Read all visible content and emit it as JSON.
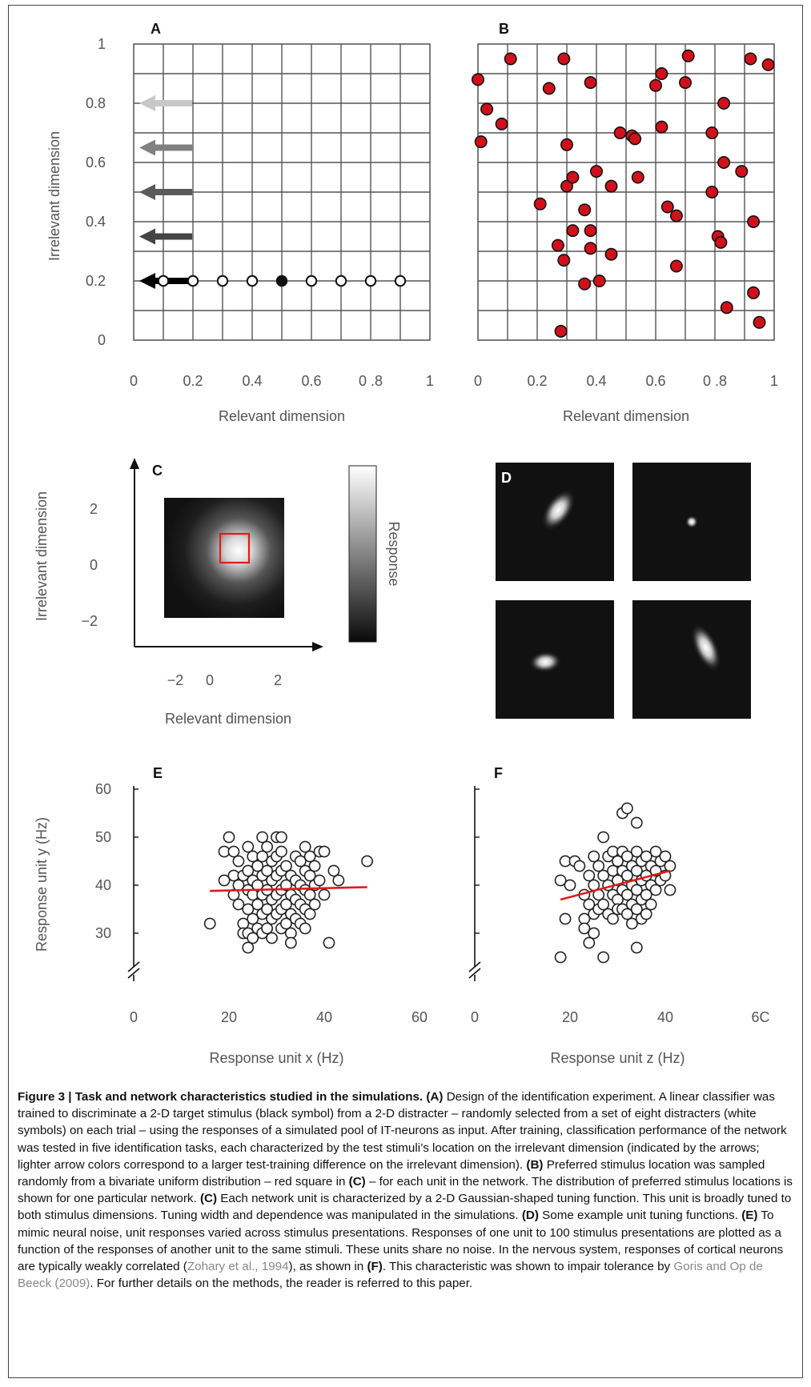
{
  "panels": {
    "A": {
      "label": "A",
      "xlabel": "Relevant dimension",
      "ylabel": "Irrelevant dimension",
      "xticks": [
        "0",
        "0.2",
        "0.4",
        "0.6",
        "0 .8",
        "1"
      ],
      "yticks": [
        "1",
        "0.8",
        "0.6",
        "0.4",
        "0.2",
        "0"
      ]
    },
    "B": {
      "label": "B",
      "xlabel": "Relevant dimension",
      "xticks": [
        "0",
        "0.2",
        "0.4",
        "0.6",
        "0 .8",
        "1"
      ]
    },
    "C": {
      "label": "C",
      "xlabel": "Relevant dimension",
      "ylabel": "Irrelevant dimension",
      "colorbar_label": "Response",
      "xticks": [
        "−2",
        "0",
        "2"
      ],
      "yticks": [
        "2",
        "0",
        "−2"
      ]
    },
    "D": {
      "label": "D"
    },
    "E": {
      "label": "E",
      "xlabel": "Response unit x (Hz)",
      "ylabel": "Response unit y (Hz)",
      "xticks": [
        "0",
        "20",
        "40",
        "60"
      ],
      "yticks": [
        "60",
        "50",
        "40",
        "30"
      ]
    },
    "F": {
      "label": "F",
      "xlabel": "Response unit z (Hz)",
      "xticks": [
        "0",
        "20",
        "40",
        "6C"
      ]
    }
  },
  "chart_data": [
    {
      "panel": "A",
      "type": "scatter",
      "xlim": [
        0,
        1
      ],
      "ylim": [
        0,
        1
      ],
      "grid": true,
      "distracters": [
        [
          0.1,
          0.2
        ],
        [
          0.2,
          0.2
        ],
        [
          0.3,
          0.2
        ],
        [
          0.4,
          0.2
        ],
        [
          0.6,
          0.2
        ],
        [
          0.7,
          0.2
        ],
        [
          0.8,
          0.2
        ],
        [
          0.9,
          0.2
        ]
      ],
      "target": [
        0.5,
        0.2
      ],
      "arrows": [
        {
          "y": 0.2,
          "color": "#000000"
        },
        {
          "y": 0.35,
          "color": "#444444"
        },
        {
          "y": 0.5,
          "color": "#5a5a5a"
        },
        {
          "y": 0.65,
          "color": "#808080"
        },
        {
          "y": 0.8,
          "color": "#c8c8c8"
        }
      ]
    },
    {
      "panel": "B",
      "type": "scatter",
      "xlim": [
        0,
        1
      ],
      "ylim": [
        0,
        1
      ],
      "grid": true,
      "color": "#d0111b",
      "points": [
        [
          0.0,
          0.88
        ],
        [
          0.03,
          0.78
        ],
        [
          0.01,
          0.67
        ],
        [
          0.08,
          0.73
        ],
        [
          0.11,
          0.95
        ],
        [
          0.24,
          0.85
        ],
        [
          0.29,
          0.95
        ],
        [
          0.38,
          0.87
        ],
        [
          0.6,
          0.86
        ],
        [
          0.62,
          0.9
        ],
        [
          0.71,
          0.96
        ],
        [
          0.7,
          0.87
        ],
        [
          0.83,
          0.8
        ],
        [
          0.92,
          0.95
        ],
        [
          0.98,
          0.93
        ],
        [
          0.3,
          0.66
        ],
        [
          0.48,
          0.7
        ],
        [
          0.52,
          0.69
        ],
        [
          0.53,
          0.68
        ],
        [
          0.62,
          0.72
        ],
        [
          0.79,
          0.7
        ],
        [
          0.21,
          0.46
        ],
        [
          0.3,
          0.52
        ],
        [
          0.32,
          0.55
        ],
        [
          0.4,
          0.57
        ],
        [
          0.45,
          0.52
        ],
        [
          0.54,
          0.55
        ],
        [
          0.64,
          0.45
        ],
        [
          0.67,
          0.42
        ],
        [
          0.79,
          0.5
        ],
        [
          0.83,
          0.6
        ],
        [
          0.89,
          0.57
        ],
        [
          0.27,
          0.32
        ],
        [
          0.29,
          0.27
        ],
        [
          0.32,
          0.37
        ],
        [
          0.36,
          0.44
        ],
        [
          0.38,
          0.37
        ],
        [
          0.38,
          0.31
        ],
        [
          0.45,
          0.29
        ],
        [
          0.81,
          0.35
        ],
        [
          0.82,
          0.33
        ],
        [
          0.93,
          0.4
        ],
        [
          0.36,
          0.19
        ],
        [
          0.41,
          0.2
        ],
        [
          0.67,
          0.25
        ],
        [
          0.84,
          0.11
        ],
        [
          0.93,
          0.16
        ],
        [
          0.95,
          0.06
        ],
        [
          0.28,
          0.03
        ]
      ]
    },
    {
      "panel": "C",
      "type": "heatmap",
      "xlim": [
        -3,
        3
      ],
      "ylim": [
        -3,
        3
      ],
      "peak": [
        1,
        0.5
      ],
      "sigma": [
        1.0,
        1.0
      ],
      "preferred_region": {
        "x": [
          0.5,
          1.5
        ],
        "y": [
          0,
          1
        ]
      }
    },
    {
      "panel": "D",
      "type": "heatmap",
      "tuning_functions": [
        {
          "position": "top-left",
          "center": [
            0.53,
            0.4
          ],
          "sigma_major": 0.2,
          "sigma_minor": 0.11,
          "angle_deg": -55
        },
        {
          "position": "top-right",
          "center": [
            0.5,
            0.5
          ],
          "sigma_major": 0.055,
          "sigma_minor": 0.055,
          "angle_deg": 0
        },
        {
          "position": "bottom-left",
          "center": [
            0.42,
            0.52
          ],
          "sigma_major": 0.14,
          "sigma_minor": 0.09,
          "angle_deg": -5
        },
        {
          "position": "bottom-right",
          "center": [
            0.62,
            0.4
          ],
          "sigma_major": 0.22,
          "sigma_minor": 0.1,
          "angle_deg": 65
        }
      ]
    },
    {
      "panel": "E",
      "type": "scatter",
      "xlim": [
        0,
        60
      ],
      "ylim": [
        20,
        60
      ],
      "regression": [
        [
          16,
          38.8
        ],
        [
          49,
          39.6
        ]
      ],
      "points": [
        [
          16,
          32
        ],
        [
          19,
          41
        ],
        [
          19,
          47
        ],
        [
          20,
          50
        ],
        [
          21,
          47
        ],
        [
          21,
          42
        ],
        [
          21,
          38
        ],
        [
          22,
          45
        ],
        [
          22,
          40
        ],
        [
          22,
          36
        ],
        [
          23,
          42
        ],
        [
          23,
          32
        ],
        [
          23,
          30
        ],
        [
          24,
          48
        ],
        [
          24,
          43
        ],
        [
          24,
          39
        ],
        [
          24,
          35
        ],
        [
          24,
          30
        ],
        [
          24,
          27
        ],
        [
          25,
          46
        ],
        [
          25,
          41
        ],
        [
          25,
          38
        ],
        [
          25,
          33
        ],
        [
          25,
          29
        ],
        [
          26,
          44
        ],
        [
          26,
          40
        ],
        [
          26,
          36
        ],
        [
          26,
          31
        ],
        [
          27,
          50
        ],
        [
          27,
          46
        ],
        [
          27,
          42
        ],
        [
          27,
          38
        ],
        [
          27,
          34
        ],
        [
          27,
          30
        ],
        [
          28,
          48
        ],
        [
          28,
          43
        ],
        [
          28,
          39
        ],
        [
          28,
          35
        ],
        [
          28,
          31
        ],
        [
          29,
          45
        ],
        [
          29,
          41
        ],
        [
          29,
          37
        ],
        [
          29,
          33
        ],
        [
          29,
          29
        ],
        [
          30,
          50
        ],
        [
          30,
          46
        ],
        [
          30,
          42
        ],
        [
          30,
          38
        ],
        [
          30,
          34
        ],
        [
          31,
          50
        ],
        [
          31,
          47
        ],
        [
          31,
          43
        ],
        [
          31,
          39
        ],
        [
          31,
          35
        ],
        [
          31,
          31
        ],
        [
          32,
          44
        ],
        [
          32,
          40
        ],
        [
          32,
          36
        ],
        [
          32,
          32
        ],
        [
          33,
          42
        ],
        [
          33,
          38
        ],
        [
          33,
          34
        ],
        [
          33,
          30
        ],
        [
          33,
          28
        ],
        [
          34,
          46
        ],
        [
          34,
          41
        ],
        [
          34,
          37
        ],
        [
          34,
          33
        ],
        [
          35,
          45
        ],
        [
          35,
          40
        ],
        [
          35,
          36
        ],
        [
          35,
          32
        ],
        [
          36,
          48
        ],
        [
          36,
          43
        ],
        [
          36,
          39
        ],
        [
          36,
          35
        ],
        [
          36,
          31
        ],
        [
          37,
          46
        ],
        [
          37,
          42
        ],
        [
          37,
          38
        ],
        [
          37,
          34
        ],
        [
          38,
          44
        ],
        [
          38,
          40
        ],
        [
          38,
          36
        ],
        [
          39,
          47
        ],
        [
          39,
          41
        ],
        [
          40,
          47
        ],
        [
          40,
          38
        ],
        [
          41,
          28
        ],
        [
          42,
          43
        ],
        [
          43,
          41
        ],
        [
          49,
          45
        ]
      ]
    },
    {
      "panel": "F",
      "type": "scatter",
      "xlim": [
        0,
        60
      ],
      "ylim": [
        20,
        60
      ],
      "regression": [
        [
          18,
          37
        ],
        [
          41,
          43
        ]
      ],
      "points": [
        [
          18,
          25
        ],
        [
          18,
          41
        ],
        [
          19,
          45
        ],
        [
          19,
          33
        ],
        [
          20,
          40
        ],
        [
          21,
          45
        ],
        [
          22,
          44
        ],
        [
          23,
          38
        ],
        [
          23,
          33
        ],
        [
          23,
          31
        ],
        [
          24,
          42
        ],
        [
          24,
          36
        ],
        [
          24,
          28
        ],
        [
          25,
          46
        ],
        [
          25,
          40
        ],
        [
          25,
          34
        ],
        [
          25,
          30
        ],
        [
          26,
          44
        ],
        [
          26,
          38
        ],
        [
          26,
          35
        ],
        [
          27,
          50
        ],
        [
          27,
          42
        ],
        [
          27,
          36
        ],
        [
          27,
          25
        ],
        [
          28,
          46
        ],
        [
          28,
          40
        ],
        [
          28,
          34
        ],
        [
          29,
          47
        ],
        [
          29,
          43
        ],
        [
          29,
          38
        ],
        [
          29,
          33
        ],
        [
          30,
          45
        ],
        [
          30,
          41
        ],
        [
          30,
          37
        ],
        [
          30,
          35
        ],
        [
          31,
          55
        ],
        [
          31,
          47
        ],
        [
          31,
          43
        ],
        [
          31,
          39
        ],
        [
          31,
          35
        ],
        [
          32,
          56
        ],
        [
          32,
          46
        ],
        [
          32,
          42
        ],
        [
          32,
          38
        ],
        [
          32,
          34
        ],
        [
          33,
          44
        ],
        [
          33,
          40
        ],
        [
          33,
          36
        ],
        [
          33,
          32
        ],
        [
          34,
          53
        ],
        [
          34,
          47
        ],
        [
          34,
          43
        ],
        [
          34,
          39
        ],
        [
          34,
          35
        ],
        [
          34,
          27
        ],
        [
          35,
          45
        ],
        [
          35,
          41
        ],
        [
          35,
          37
        ],
        [
          35,
          33
        ],
        [
          36,
          46
        ],
        [
          36,
          42
        ],
        [
          36,
          38
        ],
        [
          36,
          34
        ],
        [
          37,
          44
        ],
        [
          37,
          40
        ],
        [
          37,
          36
        ],
        [
          38,
          47
        ],
        [
          38,
          43
        ],
        [
          38,
          39
        ],
        [
          39,
          45
        ],
        [
          39,
          41
        ],
        [
          40,
          46
        ],
        [
          40,
          42
        ],
        [
          41,
          44
        ],
        [
          41,
          39
        ]
      ]
    }
  ],
  "caption": {
    "title": "Figure 3 | Task and network characteristics studied in the simulations.",
    "a_tag": "(A)",
    "a_text": " Design of the identification experiment. A linear classifier was trained to discriminate a 2-D target stimulus (black symbol) from a 2-D distracter – randomly selected from a set of eight distracters (white symbols) on each trial – using the responses of a simulated pool of IT-neurons as input. After training, classification performance of the network was tested in five identification tasks, each characterized by the test stimuli’s location on the irrelevant dimension (indicated by the arrows; lighter arrow colors correspond to a larger test-training difference on the irrelevant dimension). ",
    "b_tag": "(B)",
    "b_text1": " Preferred stimulus location was sampled randomly from a bivariate uniform distribution – red square in ",
    "b_ref_c": "(C)",
    "b_text2": " – for each unit in the network. The distribution of preferred stimulus locations is shown for one particular network. ",
    "c_tag": "(C)",
    "c_text": " Each network unit is characterized by a 2-D Gaussian-shaped tuning function. This unit is broadly tuned to both stimulus dimensions. Tuning width and dependence was manipulated in the simulations. ",
    "d_tag": "(D)",
    "d_text": " Some example unit tuning functions. ",
    "e_tag": "(E)",
    "e_text1": " To mimic neural noise, unit responses varied across stimulus presentations. Responses of one unit to 100 stimulus presentations are plotted as a function of the responses of another unit to the same stimuli. These units share no noise. In the nervous system, responses of cortical neurons are typically weakly correlated (",
    "ref1": "Zohary et al., 1994",
    "e_text2": "), as shown in ",
    "f_tag": "(F)",
    "e_text3": ". This characteristic was shown to impair tolerance by ",
    "ref2": "Goris and Op de Beeck (2009)",
    "e_text4": ". For further details on the methods, the reader is referred to this paper."
  }
}
